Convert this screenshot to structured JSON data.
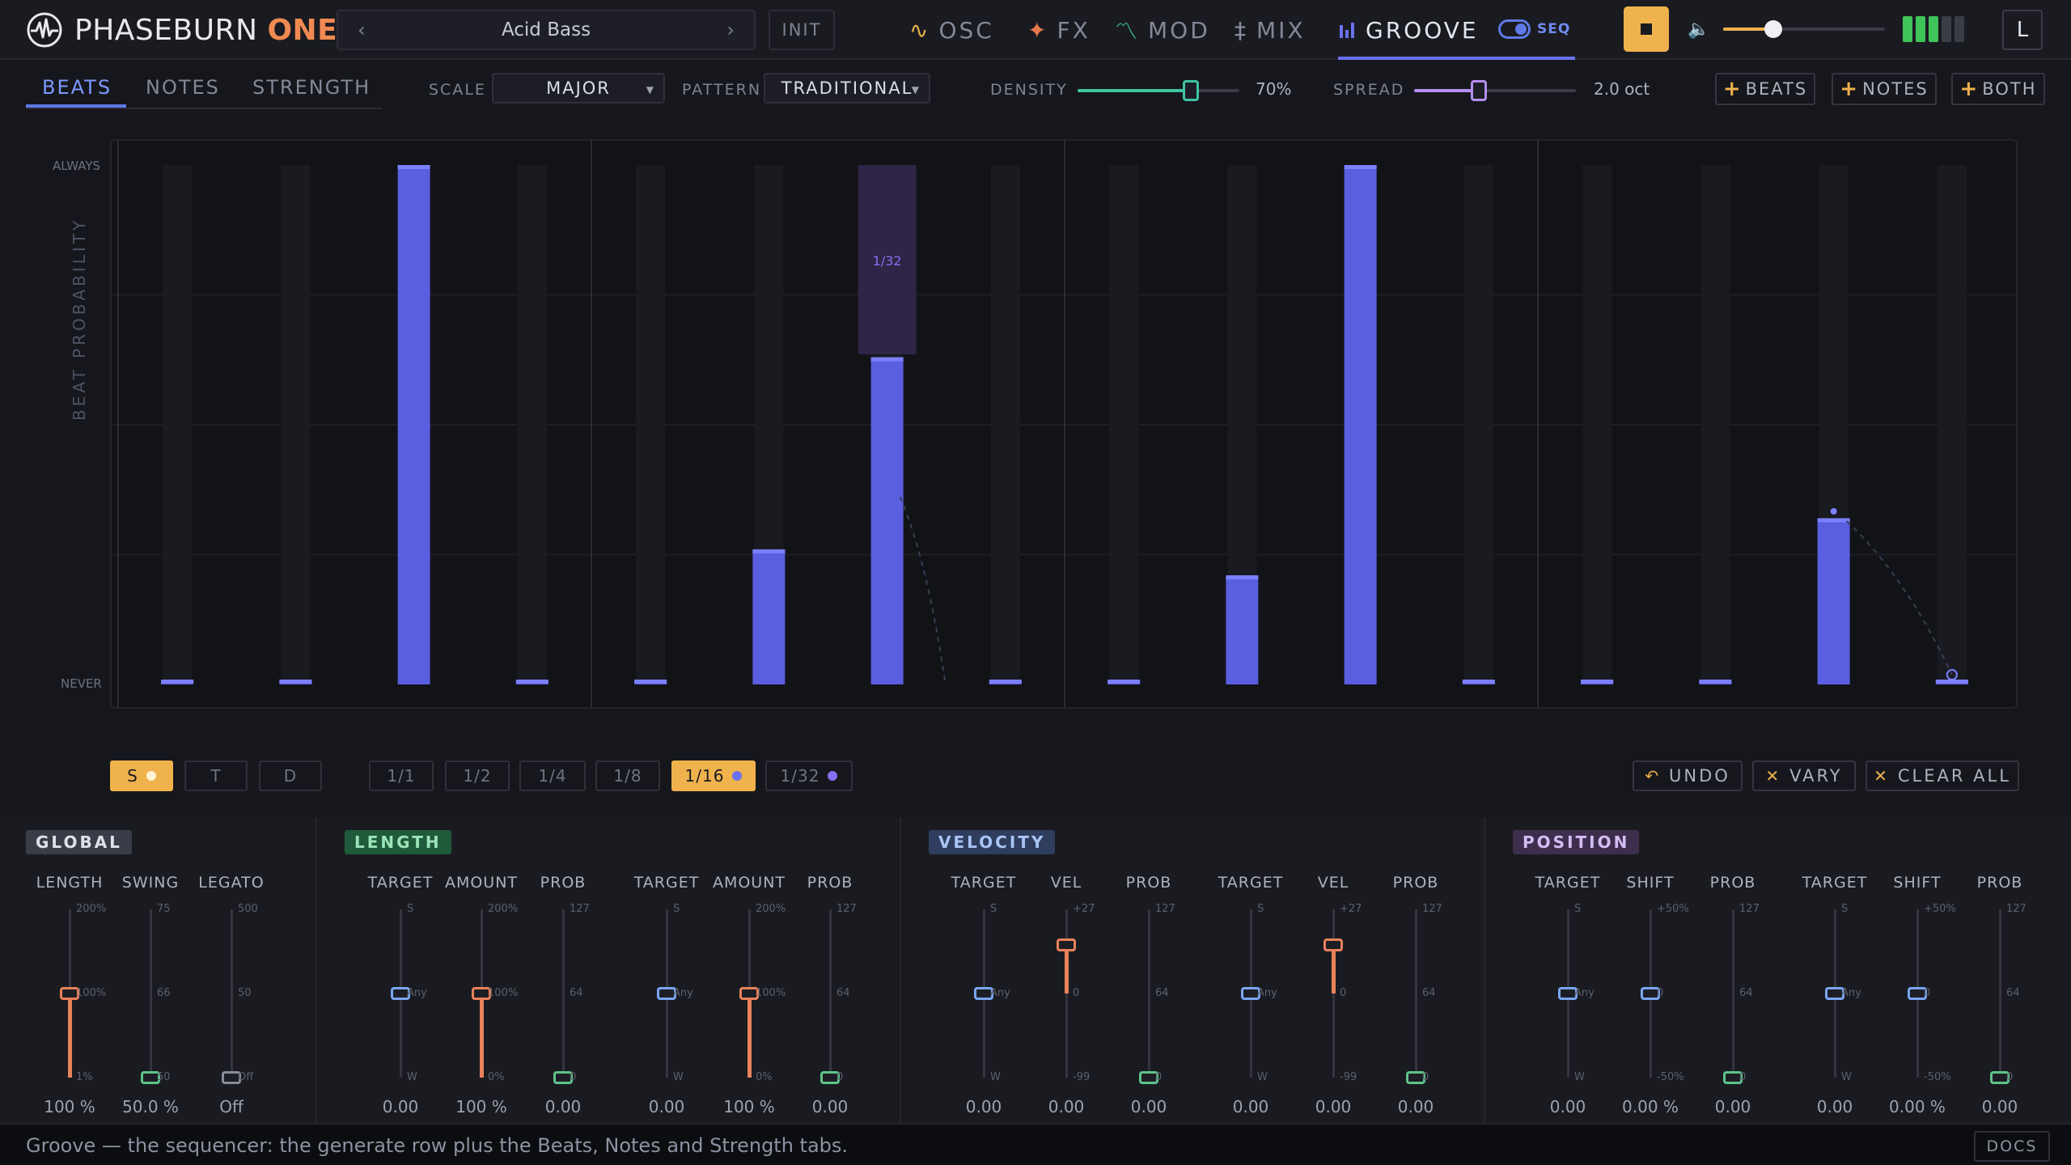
{
  "app": {
    "name": "PHASEBURN",
    "edition": "ONE"
  },
  "preset": {
    "name": "Acid Bass",
    "prev": "‹",
    "next": "›",
    "init": "INIT"
  },
  "nav": {
    "tabs": [
      {
        "glyph": "∿",
        "label": "OSC",
        "color": "#e8b04a"
      },
      {
        "glyph": "✦",
        "label": "FX",
        "color": "#e87a4a"
      },
      {
        "glyph": "〽",
        "label": "MOD",
        "color": "#3fc4a0"
      },
      {
        "glyph": "‡",
        "label": "MIX",
        "color": "#8a8fa0"
      },
      {
        "glyph": "▮",
        "label": "GROOVE",
        "color": "#6a72f0"
      }
    ],
    "active": "GROOVE",
    "seq_label": "SEQ",
    "volume": 0.31,
    "meter_on": 3,
    "meter_total": 5,
    "lbtn": "L"
  },
  "subtabs": {
    "items": [
      "BEATS",
      "NOTES",
      "STRENGTH"
    ],
    "active": "BEATS"
  },
  "controls": {
    "scale_label": "SCALE",
    "scale_value": "MAJOR",
    "pattern_label": "PATTERN",
    "pattern_value": "TRADITIONAL",
    "density_label": "DENSITY",
    "density_value": "70%",
    "density": 0.7,
    "spread_label": "SPREAD",
    "spread_value": "2.0 oct",
    "spread": 0.4,
    "add_beats": "BEATS",
    "add_notes": "NOTES",
    "add_both": "BOTH"
  },
  "grid": {
    "y_top": "ALWAYS",
    "y_bottom": "NEVER",
    "y_axis": "BEAT PROBABILITY",
    "steps": [
      0.0,
      0.0,
      1.0,
      0.0,
      0.0,
      0.26,
      0.63,
      0.0,
      0.0,
      0.21,
      1.0,
      0.0,
      0.0,
      0.0,
      0.32,
      0.0
    ],
    "sub_step": {
      "index": 6,
      "label": "1/32"
    }
  },
  "rates": {
    "modes": [
      "S",
      "T",
      "D"
    ],
    "mode_active": "S",
    "divisions": [
      "1/1",
      "1/2",
      "1/4",
      "1/8",
      "1/16",
      "1/32"
    ],
    "division_active": "1/16",
    "undo": "UNDO",
    "vary": "VARY",
    "clear_all": "CLEAR ALL"
  },
  "panels": {
    "global": {
      "title": "GLOBAL",
      "color": "#3a3d47",
      "text": "#dfe1e8",
      "cols": [
        {
          "name": "LENGTH",
          "value": "100 %",
          "ticks": [
            "200%",
            "100%",
            "1%"
          ],
          "pos": 0.5,
          "fill": "#e8825a"
        },
        {
          "name": "SWING",
          "value": "50.0 %",
          "ticks": [
            "75",
            "66",
            "50"
          ],
          "pos": 1.0,
          "fill": "#5ec48a"
        },
        {
          "name": "LEGATO",
          "value": "Off",
          "ticks": [
            "500",
            "50",
            "Off"
          ],
          "pos": 1.0,
          "fill": "#8a8d99"
        }
      ]
    },
    "length": {
      "title": "LENGTH",
      "color": "#1f5a3a",
      "text": "#9be3b8",
      "cols": [
        {
          "name": "TARGET",
          "value": "0.00",
          "ticks": [
            "S",
            "Any",
            "W"
          ],
          "pos": 0.5,
          "fill": "#7aa6f0"
        },
        {
          "name": "AMOUNT",
          "value": "100 %",
          "ticks": [
            "200%",
            "100%",
            "0%"
          ],
          "pos": 0.5,
          "fill": "#e8825a"
        },
        {
          "name": "PROB",
          "value": "0.00",
          "ticks": [
            "127",
            "64",
            "0"
          ],
          "pos": 1.0,
          "fill": "#5ec48a"
        },
        {
          "name": "TARGET",
          "value": "0.00",
          "ticks": [
            "S",
            "Any",
            "W"
          ],
          "pos": 0.5,
          "fill": "#7aa6f0"
        },
        {
          "name": "AMOUNT",
          "value": "100 %",
          "ticks": [
            "200%",
            "100%",
            "0%"
          ],
          "pos": 0.5,
          "fill": "#e8825a"
        },
        {
          "name": "PROB",
          "value": "0.00",
          "ticks": [
            "127",
            "64",
            "0"
          ],
          "pos": 1.0,
          "fill": "#5ec48a"
        }
      ]
    },
    "velocity": {
      "title": "VELOCITY",
      "color": "#2f3e5e",
      "text": "#a9c4f5",
      "cols": [
        {
          "name": "TARGET",
          "value": "0.00",
          "ticks": [
            "S",
            "Any",
            "W"
          ],
          "pos": 0.5,
          "fill": "#7aa6f0"
        },
        {
          "name": "VEL",
          "value": "0.00",
          "ticks": [
            "+27",
            "0",
            "-99"
          ],
          "pos": 0.21,
          "fill": "#e8825a"
        },
        {
          "name": "PROB",
          "value": "0.00",
          "ticks": [
            "127",
            "64",
            "0"
          ],
          "pos": 1.0,
          "fill": "#5ec48a"
        },
        {
          "name": "TARGET",
          "value": "0.00",
          "ticks": [
            "S",
            "Any",
            "W"
          ],
          "pos": 0.5,
          "fill": "#7aa6f0"
        },
        {
          "name": "VEL",
          "value": "0.00",
          "ticks": [
            "+27",
            "0",
            "-99"
          ],
          "pos": 0.21,
          "fill": "#e8825a"
        },
        {
          "name": "PROB",
          "value": "0.00",
          "ticks": [
            "127",
            "64",
            "0"
          ],
          "pos": 1.0,
          "fill": "#5ec48a"
        }
      ]
    },
    "position": {
      "title": "POSITION",
      "color": "#3d2e4e",
      "text": "#d4bdf2",
      "cols": [
        {
          "name": "TARGET",
          "value": "0.00",
          "ticks": [
            "S",
            "Any",
            "W"
          ],
          "pos": 0.5,
          "fill": "#7aa6f0"
        },
        {
          "name": "SHIFT",
          "value": "0.00 %",
          "ticks": [
            "+50%",
            "0",
            "-50%"
          ],
          "pos": 0.5,
          "fill": "#7aa6f0"
        },
        {
          "name": "PROB",
          "value": "0.00",
          "ticks": [
            "127",
            "64",
            "0"
          ],
          "pos": 1.0,
          "fill": "#5ec48a"
        },
        {
          "name": "TARGET",
          "value": "0.00",
          "ticks": [
            "S",
            "Any",
            "W"
          ],
          "pos": 0.5,
          "fill": "#7aa6f0"
        },
        {
          "name": "SHIFT",
          "value": "0.00 %",
          "ticks": [
            "+50%",
            "0",
            "-50%"
          ],
          "pos": 0.5,
          "fill": "#7aa6f0"
        },
        {
          "name": "PROB",
          "value": "0.00",
          "ticks": [
            "127",
            "64",
            "0"
          ],
          "pos": 1.0,
          "fill": "#5ec48a"
        }
      ]
    }
  },
  "status": {
    "text": "Groove — the sequencer: the generate row plus the Beats, Notes and Strength tabs.",
    "docs": "DOCS"
  }
}
